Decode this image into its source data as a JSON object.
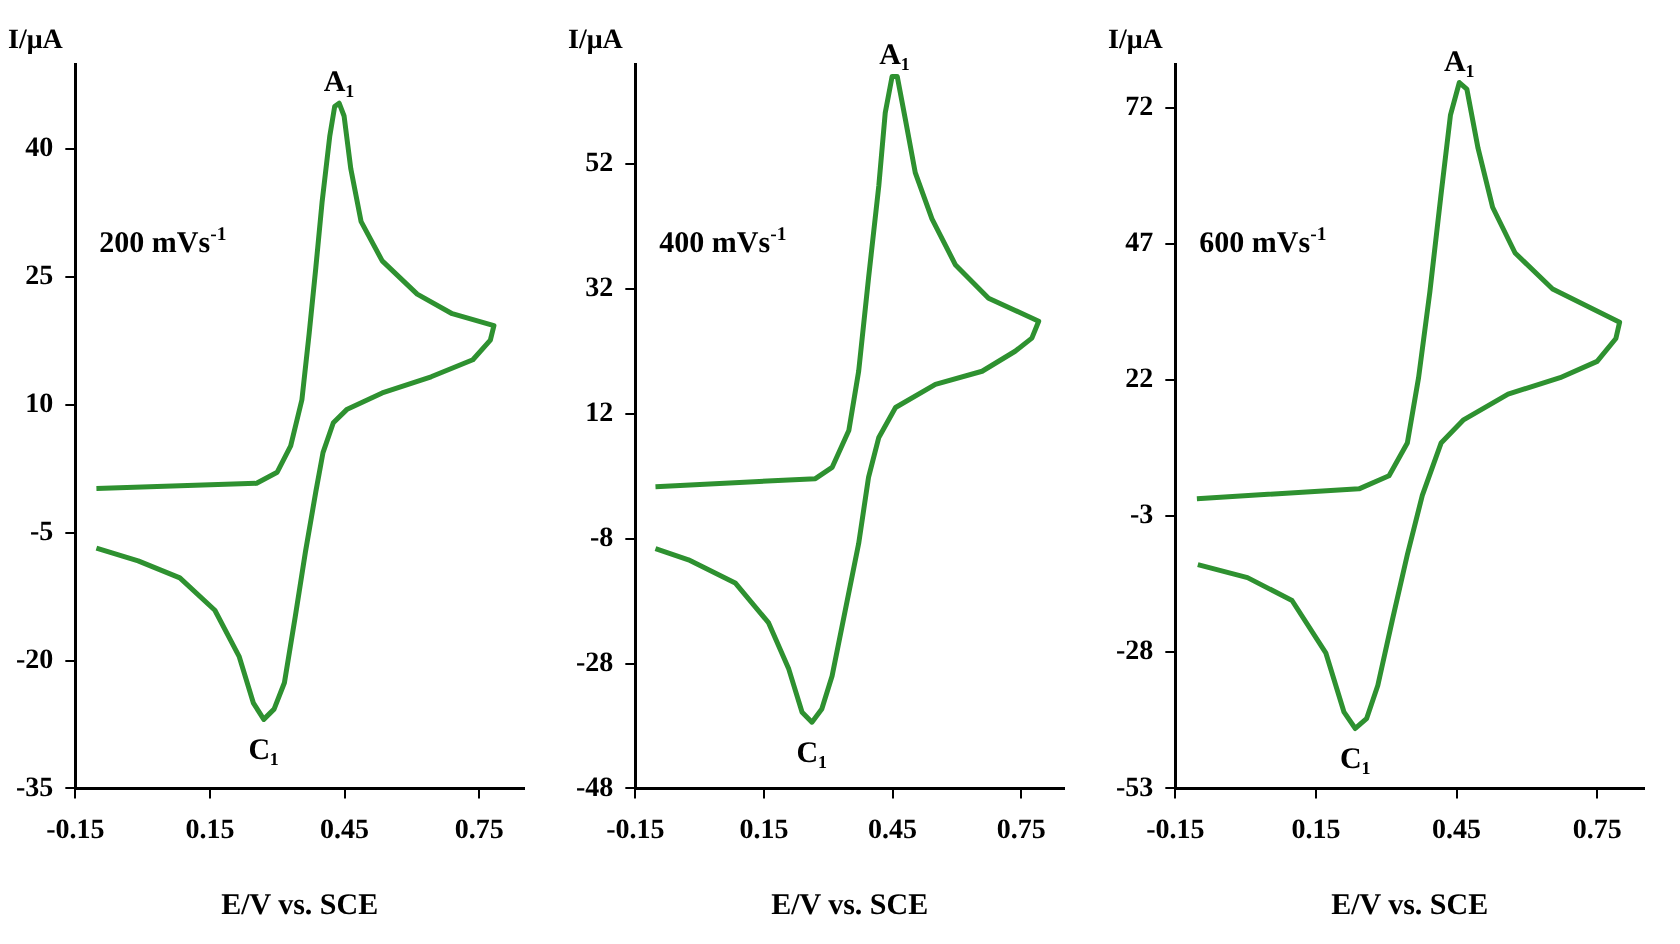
{
  "chart_data": [
    {
      "type": "line",
      "xlabel": "E/V vs. SCE",
      "ylabel": "I/μA",
      "xlim": [
        -0.15,
        0.85
      ],
      "xticks": [
        -0.15,
        0.15,
        0.45,
        0.75
      ],
      "ylim": [
        -35,
        50
      ],
      "yticks": [
        -35,
        -20,
        -5,
        10,
        25,
        40
      ],
      "grid": false,
      "marker": "none",
      "annotations": [
        "200 mVs$^{-1}$",
        {
          "text": "A₁",
          "x": 0.438,
          "y": 45.4
        },
        {
          "text": "C₁",
          "x": 0.27,
          "y": -26.9
        }
      ],
      "series": [
        {
          "color": "#2e9130",
          "x": [
            -0.103,
            0.254,
            0.3,
            0.33,
            0.355,
            0.371,
            0.386,
            0.4,
            0.417,
            0.428,
            0.438,
            0.449,
            0.464,
            0.487,
            0.534,
            0.612,
            0.69,
            0.783,
            0.775,
            0.736,
            0.643,
            0.534,
            0.456,
            0.425,
            0.402,
            0.386,
            0.363,
            0.34,
            0.316,
            0.293,
            0.27,
            0.247,
            0.215,
            0.161,
            0.083,
            -0.01,
            -0.103
          ],
          "values": [
            0.2,
            0.8,
            2.1,
            5.2,
            10.6,
            18.3,
            26.1,
            33.8,
            41.5,
            45,
            45.4,
            43.9,
            37.7,
            31.5,
            26.9,
            23,
            20.7,
            19.3,
            17.6,
            15.3,
            13.3,
            11.4,
            9.5,
            7.9,
            4.4,
            -0.2,
            -7.2,
            -14.9,
            -22.6,
            -25.7,
            -26.9,
            -25,
            -19.5,
            -14.1,
            -10.3,
            -8.3,
            -6.8
          ]
        }
      ]
    },
    {
      "type": "line",
      "xlabel": "E/V vs. SCE",
      "ylabel": "I/μA",
      "xlim": [
        -0.15,
        0.85
      ],
      "xticks": [
        -0.15,
        0.15,
        0.45,
        0.75
      ],
      "ylim": [
        -48,
        68
      ],
      "yticks": [
        -48,
        -28,
        -8,
        12,
        32,
        52
      ],
      "grid": false,
      "marker": "none",
      "annotations": [
        "400 mVs$^{-1}$",
        {
          "text": "A₁",
          "x": 0.455,
          "y": 66
        },
        {
          "text": "C₁",
          "x": 0.262,
          "y": -37.4
        }
      ],
      "series": [
        {
          "color": "#2e9130",
          "x": [
            -0.103,
            0.27,
            0.309,
            0.348,
            0.371,
            0.394,
            0.418,
            0.433,
            0.449,
            0.461,
            0.48,
            0.503,
            0.542,
            0.597,
            0.674,
            0.791,
            0.775,
            0.736,
            0.659,
            0.55,
            0.457,
            0.418,
            0.394,
            0.371,
            0.34,
            0.309,
            0.285,
            0.262,
            0.239,
            0.208,
            0.161,
            0.083,
            -0.026,
            -0.103
          ],
          "values": [
            0.3,
            1.6,
            3.4,
            9.3,
            18.8,
            33.7,
            48.5,
            60.2,
            66,
            66,
            59.1,
            50.6,
            43.2,
            35.8,
            30.5,
            26.8,
            24.1,
            22,
            18.8,
            16.7,
            13,
            8.2,
            1.8,
            -8.8,
            -19.4,
            -30,
            -35.3,
            -37.4,
            -35.8,
            -28.9,
            -21.5,
            -15.1,
            -11.4,
            -9.6
          ]
        }
      ]
    },
    {
      "type": "line",
      "xlabel": "E/V vs. SCE",
      "ylabel": "I/μA",
      "xlim": [
        -0.15,
        0.85
      ],
      "xticks": [
        -0.15,
        0.15,
        0.45,
        0.75
      ],
      "ylim": [
        -53,
        80
      ],
      "yticks": [
        -53,
        -28,
        -3,
        22,
        47,
        72
      ],
      "grid": false,
      "marker": "none",
      "annotations": [
        "600 mVs$^{-1}$",
        {
          "text": "A₁",
          "x": 0.456,
          "y": 76.6
        },
        {
          "text": "C₁",
          "x": 0.234,
          "y": -42
        }
      ],
      "series": [
        {
          "color": "#2e9130",
          "x": [
            -0.104,
            0.242,
            0.306,
            0.345,
            0.369,
            0.393,
            0.417,
            0.437,
            0.456,
            0.472,
            0.496,
            0.527,
            0.575,
            0.655,
            0.798,
            0.79,
            0.75,
            0.671,
            0.56,
            0.464,
            0.417,
            0.377,
            0.345,
            0.313,
            0.282,
            0.258,
            0.234,
            0.21,
            0.171,
            0.099,
            0.004,
            -0.102
          ],
          "values": [
            0.2,
            2,
            4.4,
            10.4,
            22.4,
            38.1,
            56.1,
            70.6,
            76.6,
            75.4,
            64.5,
            53.7,
            45.3,
            38.7,
            32.6,
            29.6,
            25.4,
            22.4,
            19.4,
            14.6,
            10.4,
            0.8,
            -10.1,
            -22.1,
            -34.1,
            -40.2,
            -42,
            -39,
            -28.1,
            -18.5,
            -14.3,
            -11.9
          ]
        }
      ]
    }
  ]
}
